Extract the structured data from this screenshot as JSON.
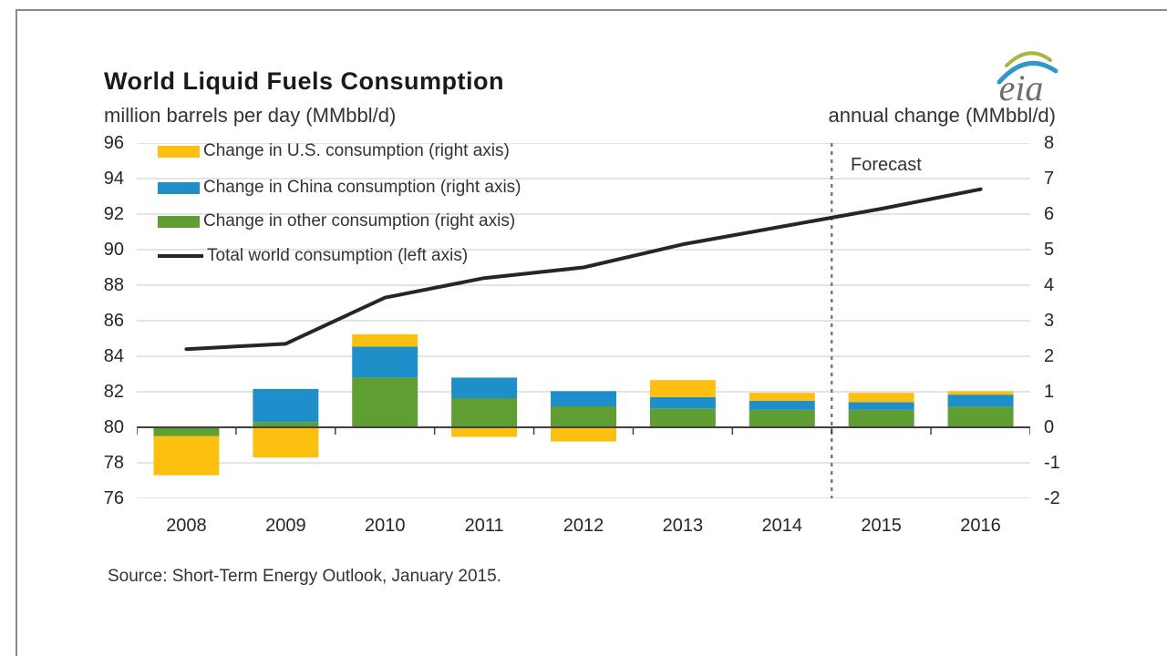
{
  "header": {
    "title": "World Liquid Fuels Consumption",
    "left_axis_title": "million barrels per day (MMbbl/d)",
    "right_axis_title": "annual change (MMbbl/d)",
    "logo_text": "eia"
  },
  "forecast_label": "Forecast",
  "source": "Source: Short-Term Energy Outlook, January 2015.",
  "legend": [
    {
      "key": "us",
      "label": "Change in U.S. consumption (right axis)",
      "swatch": "box",
      "color": "#fdc010"
    },
    {
      "key": "china",
      "label": "Change in China consumption (right axis)",
      "swatch": "box",
      "color": "#1f8fca"
    },
    {
      "key": "other",
      "label": "Change in other consumption (right axis)",
      "swatch": "box",
      "color": "#5f9e33"
    },
    {
      "key": "total",
      "label": "Total world consumption (left axis)",
      "swatch": "line",
      "color": "#262626"
    }
  ],
  "colors": {
    "us": "#fdc010",
    "china": "#1f8fca",
    "other": "#5f9e33",
    "line": "#262626",
    "grid": "#c8c8c8",
    "zero_axis": "#404040",
    "forecast_dash": "#7a7a7a"
  },
  "chart_data": {
    "type": "combo (stacked bar + line)",
    "categories": [
      "2008",
      "2009",
      "2010",
      "2011",
      "2012",
      "2013",
      "2014",
      "2015",
      "2016"
    ],
    "series": [
      {
        "key": "us",
        "name": "Change in U.S. consumption (right axis)",
        "type": "bar",
        "axis": "right",
        "color": "#fdc010",
        "values": [
          -1.1,
          -0.85,
          0.35,
          -0.27,
          -0.4,
          0.48,
          0.22,
          0.26,
          0.1
        ]
      },
      {
        "key": "china",
        "name": "Change in China consumption (right axis)",
        "type": "bar",
        "axis": "right",
        "color": "#1f8fca",
        "values": [
          0,
          0.93,
          0.87,
          0.58,
          0.43,
          0.32,
          0.26,
          0.22,
          0.34
        ]
      },
      {
        "key": "other",
        "name": "Change in other consumption (right axis)",
        "type": "bar",
        "axis": "right",
        "color": "#5f9e33",
        "values": [
          -0.25,
          0.15,
          1.4,
          0.82,
          0.59,
          0.53,
          0.49,
          0.49,
          0.58
        ]
      },
      {
        "key": "total",
        "name": "Total world consumption (left axis)",
        "type": "line",
        "axis": "left",
        "color": "#262626",
        "values": [
          84.4,
          84.7,
          87.3,
          88.4,
          89.0,
          90.3,
          91.3,
          92.3,
          93.4
        ]
      }
    ],
    "bar_stack_order": [
      "other",
      "china",
      "us"
    ],
    "left_axis": {
      "title": "million barrels per day (MMbbl/d)",
      "min": 76,
      "max": 96,
      "ticks": [
        96,
        94,
        92,
        90,
        88,
        86,
        84,
        82,
        80,
        78,
        76
      ]
    },
    "right_axis": {
      "title": "annual change (MMbbl/d)",
      "min": -2,
      "max": 8,
      "ticks": [
        8,
        7,
        6,
        5,
        4,
        3,
        2,
        1,
        0,
        -1,
        -2
      ]
    },
    "forecast_boundary_between": [
      "2014",
      "2015"
    ],
    "grid": true,
    "legend_position": "top-left inside plot"
  }
}
